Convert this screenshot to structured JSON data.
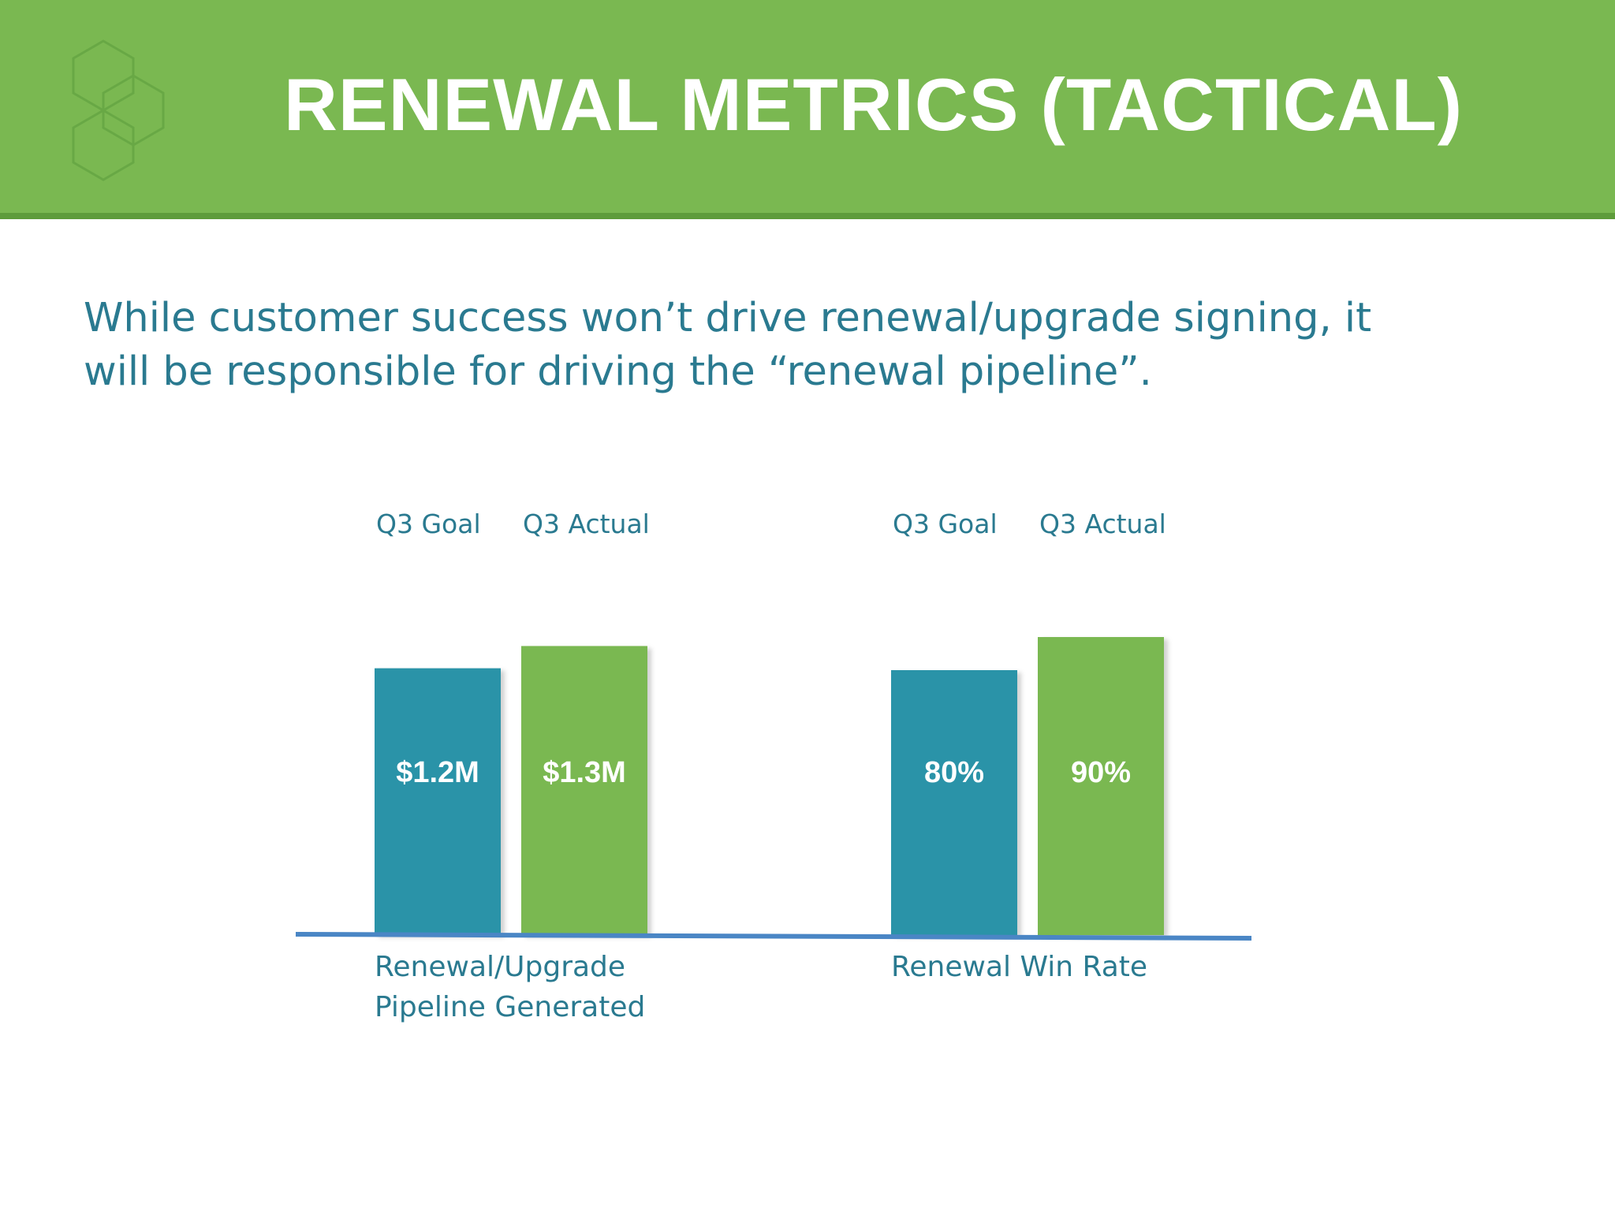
{
  "slide": {
    "title": "RENEWAL METRICS (TACTICAL)",
    "subtitle_line1": "While customer success won’t drive renewal/upgrade signing, it",
    "subtitle_line2": "will be responsible for driving the “renewal pipeline”.",
    "colors": {
      "header": "#7ab851",
      "header_border": "#5e9c3b",
      "text": "#2a7a90",
      "goal_bar": "#2a93a8",
      "actual_bar": "#7ab851",
      "axis": "#4a86c5"
    }
  },
  "chart_data": [
    {
      "type": "bar",
      "categories": [
        "Q3 Goal",
        "Q3 Actual"
      ],
      "values": [
        1.2,
        1.3
      ],
      "data_labels": [
        "$1.2M",
        "$1.3M"
      ],
      "xlabel_lines": [
        "Renewal/Upgrade",
        "Pipeline Generated"
      ],
      "ylim": [
        0,
        1.5
      ]
    },
    {
      "type": "bar",
      "categories": [
        "Q3 Goal",
        "Q3 Actual"
      ],
      "values": [
        80,
        90
      ],
      "data_labels": [
        "80%",
        "90%"
      ],
      "xlabel_lines": [
        "Renewal Win Rate"
      ],
      "ylim": [
        0,
        100
      ]
    }
  ]
}
